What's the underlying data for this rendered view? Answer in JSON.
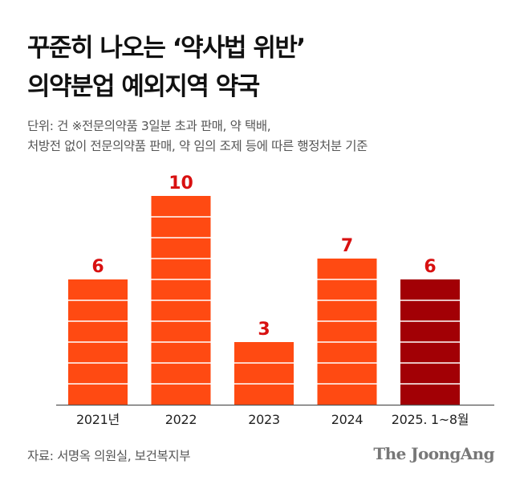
{
  "title_line1": "꾸준히 나오는 ‘약사법 위반’",
  "title_line2": "의약분업 예외지역 약국",
  "subtitle_line1": "단위: 건 ※전문의약품 3일분 초과 판매, 약 택배,",
  "subtitle_line2": "처방전 없이 전문의약품 판매, 약 임의 조제 등에 따른 행정처분 기준",
  "source": "자료: 서명옥 의원실, 보건복지부",
  "brand": "The JoongAng",
  "colors": {
    "bar": "#FF4A12",
    "bar_highlight": "#A20005",
    "value_label": "#D81010",
    "axis": "#555555"
  },
  "chart_data": {
    "type": "bar",
    "categories": [
      "2021년",
      "2022",
      "2023",
      "2024",
      "2025. 1~8월"
    ],
    "values": [
      6,
      10,
      3,
      7,
      6
    ],
    "highlight_index": 4,
    "unit": "건",
    "ylim": [
      0,
      10
    ],
    "grid": false,
    "legend": "none"
  }
}
